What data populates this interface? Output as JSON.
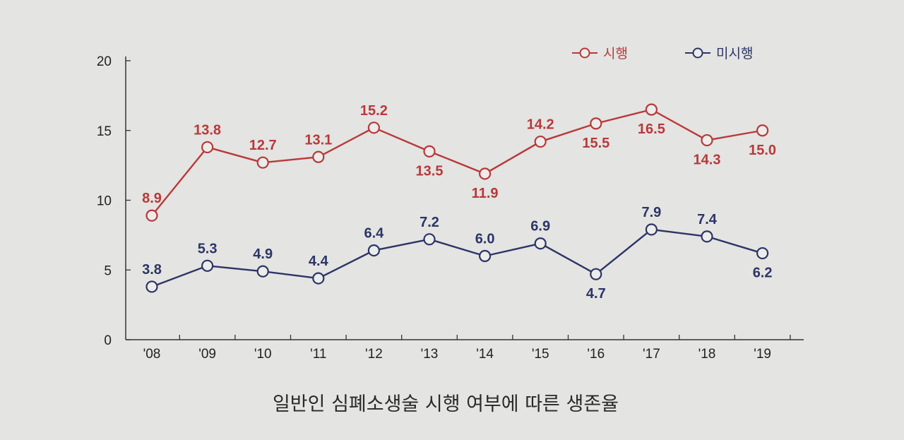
{
  "chart_data": {
    "type": "line",
    "title": "일반인 심폐소생술 시행 여부에 따른 생존율",
    "categories": [
      "'08",
      "'09",
      "'10",
      "'11",
      "'12",
      "'13",
      "'14",
      "'15",
      "'16",
      "'17",
      "'18",
      "'19"
    ],
    "series": [
      {
        "name": "시행",
        "color": "#b8393a",
        "values": [
          8.9,
          13.8,
          12.7,
          13.1,
          15.2,
          13.5,
          11.9,
          14.2,
          15.5,
          16.5,
          14.3,
          15.0
        ]
      },
      {
        "name": "미시행",
        "color": "#2c3566",
        "values": [
          3.8,
          5.3,
          4.9,
          4.4,
          6.4,
          7.2,
          6.0,
          6.9,
          4.7,
          7.9,
          7.4,
          6.2
        ]
      }
    ],
    "yticks": [
      "0",
      "5",
      "10",
      "15",
      "20"
    ],
    "ylim": [
      0,
      20
    ],
    "legend_position": "top-right",
    "grid": false
  }
}
